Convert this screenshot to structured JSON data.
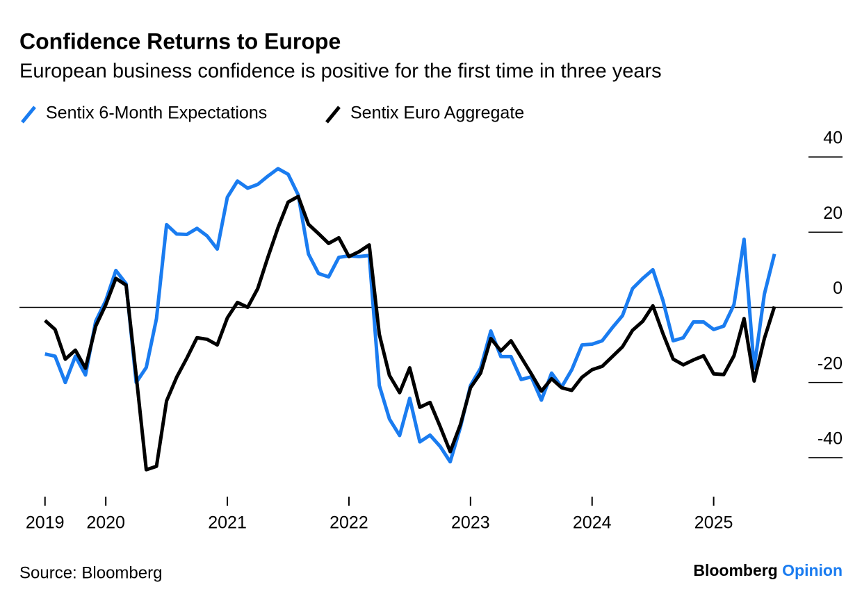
{
  "chart_data": {
    "type": "line",
    "title": "Confidence Returns to Europe",
    "subtitle": "European business confidence is positive for the first time in three years",
    "source": "Source: Bloomberg",
    "brand": [
      "Bloomberg",
      "Opinion"
    ],
    "x": [
      2019.5,
      2019.583,
      2019.667,
      2019.75,
      2019.833,
      2019.917,
      2020,
      2020.083,
      2020.167,
      2020.25,
      2020.333,
      2020.417,
      2020.5,
      2020.583,
      2020.667,
      2020.75,
      2020.833,
      2020.917,
      2021,
      2021.083,
      2021.167,
      2021.25,
      2021.333,
      2021.417,
      2021.5,
      2021.583,
      2021.667,
      2021.75,
      2021.833,
      2021.917,
      2022,
      2022.083,
      2022.167,
      2022.25,
      2022.333,
      2022.417,
      2022.5,
      2022.583,
      2022.667,
      2022.75,
      2022.833,
      2022.917,
      2023,
      2023.083,
      2023.167,
      2023.25,
      2023.333,
      2023.417,
      2023.5,
      2023.583,
      2023.667,
      2023.75,
      2023.833,
      2023.917,
      2024,
      2024.083,
      2024.167,
      2024.25,
      2024.333,
      2024.417,
      2024.5,
      2024.583,
      2024.667,
      2024.75,
      2024.833,
      2024.917,
      2025,
      2025.083,
      2025.167,
      2025.25,
      2025.333,
      2025.417,
      2025.5
    ],
    "series": [
      {
        "name": "Sentix 6-Month Expectations",
        "color": "#1a7cf0",
        "values": [
          -12.4,
          -13,
          -20,
          -13,
          -18,
          -3.7,
          1.8,
          9.8,
          6.3,
          -20,
          -16,
          -3,
          22,
          19.5,
          19.4,
          21,
          19,
          15.5,
          29.3,
          33.6,
          31.7,
          32.7,
          34.9,
          36.9,
          35.4,
          29.9,
          14.2,
          9,
          8.1,
          13.3,
          13.7,
          13.5,
          13.8,
          -20.8,
          -29.7,
          -34.1,
          -24.2,
          -35.8,
          -34,
          -37,
          -41.1,
          -31.9,
          -20.8,
          -16.2,
          -6.3,
          -13.1,
          -13.1,
          -19.2,
          -18.5,
          -24.7,
          -17.5,
          -21.2,
          -16.6,
          -10,
          -9.8,
          -8.9,
          -5.4,
          -2.2,
          5,
          7.7,
          10,
          1.8,
          -8.9,
          -8.1,
          -3.9,
          -3.9,
          -5.9,
          -5,
          0.7,
          18.1,
          -16.2,
          3.5,
          14.2
        ]
      },
      {
        "name": "Sentix Euro Aggregate",
        "color": "#000000",
        "values": [
          -3.5,
          -5.9,
          -13.8,
          -11.4,
          -16.2,
          -5,
          0.7,
          7.7,
          5.9,
          -18.1,
          -43.2,
          -42.3,
          -24.9,
          -18.6,
          -13.5,
          -8.1,
          -8.5,
          -10,
          -2.8,
          1.3,
          0,
          5,
          13.3,
          21.2,
          28,
          29.5,
          22.1,
          19.6,
          17,
          18.5,
          13.5,
          14.8,
          16.6,
          -7.2,
          -18.1,
          -22.7,
          -16.1,
          -26.6,
          -25.3,
          -31.7,
          -38.4,
          -31.2,
          -21.4,
          -17.5,
          -8.3,
          -11.6,
          -8.9,
          -13.3,
          -17.7,
          -22.3,
          -19,
          -21.4,
          -22.1,
          -18.6,
          -16.6,
          -15.7,
          -13.1,
          -10.5,
          -6.1,
          -3.7,
          0.4,
          -7,
          -13.8,
          -15.3,
          -14,
          -12.9,
          -17.7,
          -17.9,
          -12.9,
          -3,
          -19.6,
          -8.3,
          0.2
        ]
      }
    ],
    "xlim": [
      2019.29,
      2026.06
    ],
    "xticks": [
      {
        "value": 2019.5,
        "label": "2019"
      },
      2020,
      2021,
      2022,
      2023,
      2024,
      2025
    ],
    "ylim": [
      -50,
      40
    ],
    "yticks": [
      40,
      20,
      0,
      -20,
      -40
    ],
    "y_axis_side": "right"
  }
}
